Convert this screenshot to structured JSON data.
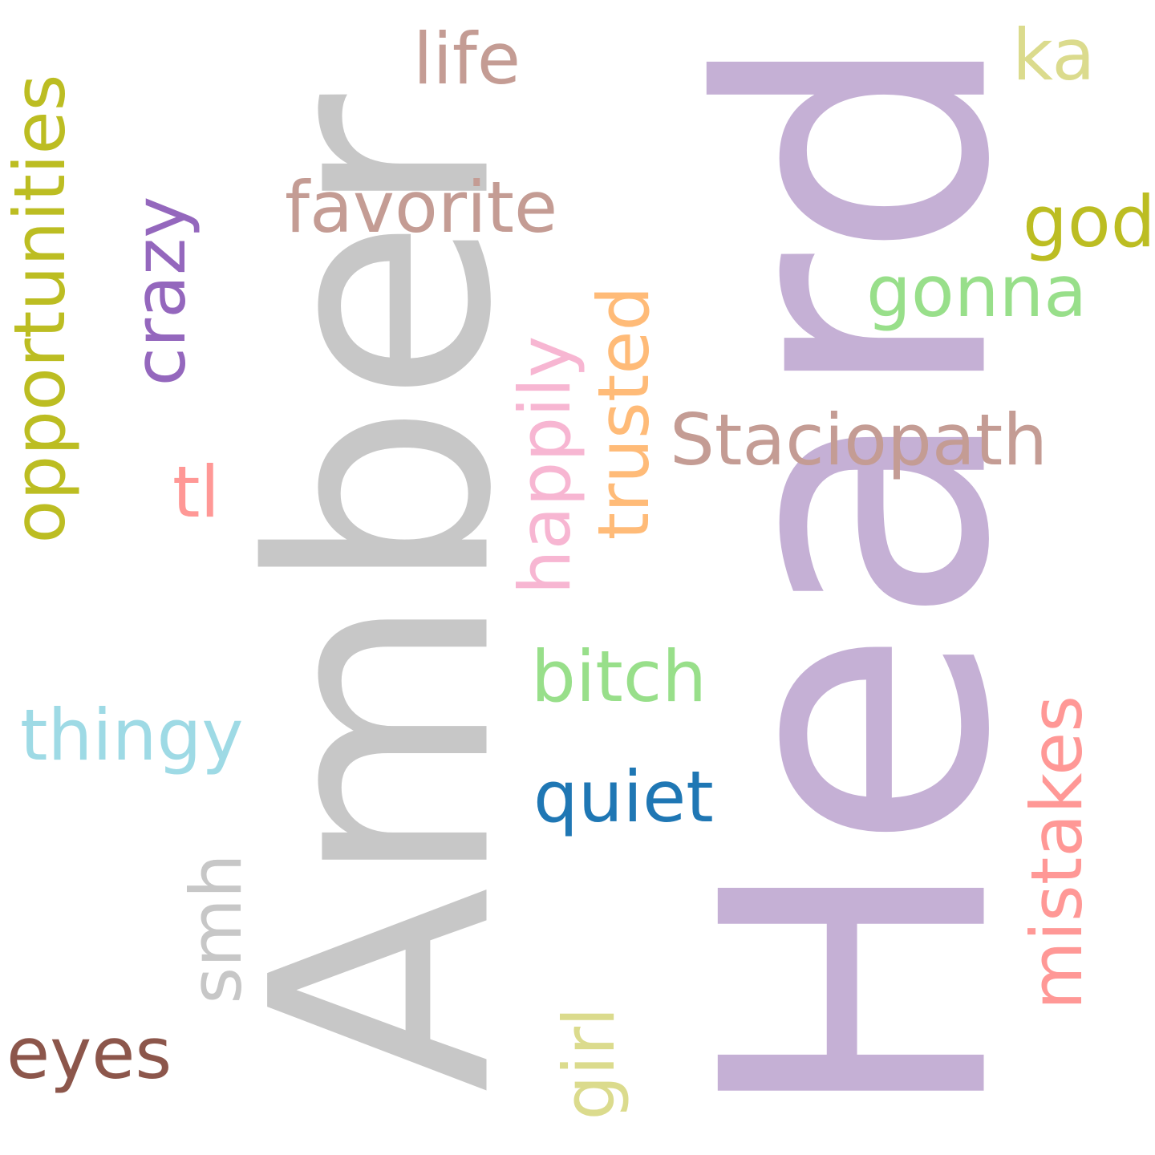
{
  "words": {
    "heard": {
      "text": "Heard",
      "color": "#c5b0d5",
      "orientation": "vertical"
    },
    "amber": {
      "text": "Amber",
      "color": "#c7c7c7",
      "orientation": "vertical"
    },
    "opportunities": {
      "text": "opportunities",
      "color": "#bcbd22",
      "orientation": "vertical"
    },
    "crazy": {
      "text": "crazy",
      "color": "#9467bd",
      "orientation": "vertical"
    },
    "happily": {
      "text": "happily",
      "color": "#f7b6d2",
      "orientation": "vertical"
    },
    "trusted": {
      "text": "trusted",
      "color": "#ffbb78",
      "orientation": "vertical"
    },
    "mistakes": {
      "text": "mistakes",
      "color": "#ff9896",
      "orientation": "vertical"
    },
    "smh": {
      "text": "smh",
      "color": "#c7c7c7",
      "orientation": "vertical"
    },
    "girl": {
      "text": "girl",
      "color": "#dbdb8d",
      "orientation": "vertical"
    },
    "life": {
      "text": "life",
      "color": "#c49c94",
      "orientation": "horizontal"
    },
    "ka": {
      "text": "ka",
      "color": "#dbdb8d",
      "orientation": "horizontal"
    },
    "favorite": {
      "text": "favorite",
      "color": "#c49c94",
      "orientation": "horizontal"
    },
    "god": {
      "text": "god",
      "color": "#bcbd22",
      "orientation": "horizontal"
    },
    "gonna": {
      "text": "gonna",
      "color": "#98df8a",
      "orientation": "horizontal"
    },
    "staciopath": {
      "text": "Staciopath",
      "color": "#c49c94",
      "orientation": "horizontal"
    },
    "tl": {
      "text": "tl",
      "color": "#ff9896",
      "orientation": "horizontal"
    },
    "bitch": {
      "text": "bitch",
      "color": "#98df8a",
      "orientation": "horizontal"
    },
    "thingy": {
      "text": "thingy",
      "color": "#9edae5",
      "orientation": "horizontal"
    },
    "quiet": {
      "text": "quiet",
      "color": "#1f77b4",
      "orientation": "horizontal"
    },
    "eyes": {
      "text": "eyes",
      "color": "#8c564b",
      "orientation": "horizontal"
    }
  }
}
